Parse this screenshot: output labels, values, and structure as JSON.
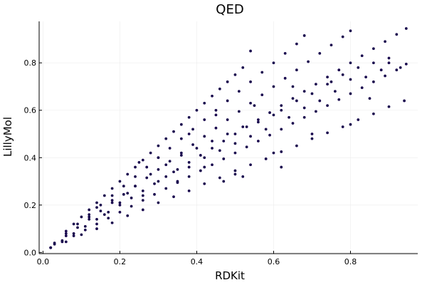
{
  "chart_data": {
    "type": "scatter",
    "title": "QED",
    "xlabel": "RDKit",
    "ylabel": "LillyMol",
    "xlim": [
      -0.01,
      0.975
    ],
    "ylim": [
      -0.005,
      0.975
    ],
    "grid": true,
    "legend": "none",
    "marker_color": "#1a0a4e",
    "xticks": [
      0.0,
      0.2,
      0.4,
      0.6,
      0.8
    ],
    "yticks": [
      0.0,
      0.2,
      0.4,
      0.6,
      0.8
    ],
    "xtick_labels": [
      "0.0",
      "0.2",
      "0.4",
      "0.6",
      "0.8"
    ],
    "ytick_labels": [
      "0.0",
      "0.2",
      "0.4",
      "0.6",
      "0.8"
    ],
    "series": [
      {
        "x": [
          0.02,
          0.05,
          0.08,
          0.11,
          0.14,
          0.17,
          0.2,
          0.23,
          0.26,
          0.29,
          0.32,
          0.35,
          0.38,
          0.41,
          0.44,
          0.47,
          0.5,
          0.53,
          0.56,
          0.59,
          0.62,
          0.65,
          0.68,
          0.71,
          0.74,
          0.77,
          0.8,
          0.83,
          0.86,
          0.89,
          0.92,
          0.945
        ],
        "y": [
          0.02,
          0.05,
          0.08,
          0.11,
          0.14,
          0.17,
          0.2,
          0.23,
          0.26,
          0.29,
          0.32,
          0.35,
          0.38,
          0.41,
          0.44,
          0.47,
          0.5,
          0.53,
          0.56,
          0.59,
          0.62,
          0.65,
          0.68,
          0.71,
          0.74,
          0.77,
          0.8,
          0.83,
          0.86,
          0.89,
          0.92,
          0.945
        ]
      },
      {
        "x": [
          0.03,
          0.06,
          0.09,
          0.12,
          0.15,
          0.18,
          0.21,
          0.24,
          0.27,
          0.3,
          0.33,
          0.36,
          0.39,
          0.42,
          0.45,
          0.48,
          0.51,
          0.54,
          0.57,
          0.6,
          0.63,
          0.66,
          0.69,
          0.72,
          0.75,
          0.78,
          0.8
        ],
        "y": [
          0.035,
          0.07,
          0.105,
          0.14,
          0.175,
          0.21,
          0.245,
          0.28,
          0.315,
          0.35,
          0.385,
          0.42,
          0.455,
          0.49,
          0.525,
          0.56,
          0.595,
          0.63,
          0.665,
          0.7,
          0.735,
          0.77,
          0.805,
          0.84,
          0.875,
          0.91,
          0.935
        ]
      },
      {
        "x": [
          0.03,
          0.06,
          0.09,
          0.12,
          0.15,
          0.18,
          0.21,
          0.24,
          0.27,
          0.3,
          0.33,
          0.36,
          0.39,
          0.42,
          0.45,
          0.48,
          0.51,
          0.54,
          0.57,
          0.6,
          0.63,
          0.66,
          0.68
        ],
        "y": [
          0.04,
          0.08,
          0.12,
          0.16,
          0.2,
          0.24,
          0.28,
          0.32,
          0.36,
          0.4,
          0.44,
          0.48,
          0.52,
          0.56,
          0.6,
          0.64,
          0.68,
          0.72,
          0.76,
          0.8,
          0.84,
          0.88,
          0.915
        ]
      },
      {
        "x": [
          0.06,
          0.08,
          0.1,
          0.12,
          0.14,
          0.16,
          0.18,
          0.2,
          0.22,
          0.24,
          0.26,
          0.28,
          0.3,
          0.32,
          0.34,
          0.36,
          0.38,
          0.4,
          0.42,
          0.44,
          0.46,
          0.48,
          0.5,
          0.52,
          0.54
        ],
        "y": [
          0.09,
          0.12,
          0.15,
          0.18,
          0.21,
          0.24,
          0.27,
          0.3,
          0.33,
          0.36,
          0.39,
          0.42,
          0.45,
          0.48,
          0.51,
          0.54,
          0.57,
          0.6,
          0.63,
          0.66,
          0.69,
          0.72,
          0.75,
          0.78,
          0.85
        ]
      },
      {
        "x": [
          0.02,
          0.05,
          0.08,
          0.11,
          0.14,
          0.17,
          0.2,
          0.23,
          0.26,
          0.29,
          0.32,
          0.35,
          0.38,
          0.41,
          0.44,
          0.47,
          0.5,
          0.53,
          0.56,
          0.59,
          0.62,
          0.65,
          0.68,
          0.71,
          0.74,
          0.77,
          0.8,
          0.83,
          0.86,
          0.89,
          0.92,
          0.945
        ],
        "y": [
          0.02,
          0.045,
          0.07,
          0.095,
          0.12,
          0.145,
          0.17,
          0.195,
          0.22,
          0.245,
          0.27,
          0.295,
          0.32,
          0.345,
          0.37,
          0.395,
          0.42,
          0.445,
          0.47,
          0.495,
          0.52,
          0.545,
          0.57,
          0.595,
          0.62,
          0.645,
          0.67,
          0.695,
          0.72,
          0.745,
          0.77,
          0.795
        ]
      },
      {
        "x": [
          0.02,
          0.06,
          0.1,
          0.14,
          0.18,
          0.22,
          0.26,
          0.3,
          0.34,
          0.38,
          0.42,
          0.46,
          0.5,
          0.54,
          0.58,
          0.62,
          0.66,
          0.7,
          0.74,
          0.78,
          0.82,
          0.86,
          0.9,
          0.94
        ],
        "y": [
          0.02,
          0.045,
          0.075,
          0.1,
          0.125,
          0.155,
          0.18,
          0.21,
          0.235,
          0.26,
          0.29,
          0.315,
          0.345,
          0.37,
          0.395,
          0.425,
          0.45,
          0.48,
          0.505,
          0.53,
          0.56,
          0.585,
          0.615,
          0.64
        ]
      },
      {
        "x": [
          0.12,
          0.14,
          0.16,
          0.18,
          0.2,
          0.22,
          0.24,
          0.26,
          0.28,
          0.3,
          0.32,
          0.34,
          0.36,
          0.38,
          0.4,
          0.42,
          0.44,
          0.46,
          0.48,
          0.5,
          0.52,
          0.54,
          0.56,
          0.58,
          0.6,
          0.62,
          0.64,
          0.66,
          0.68,
          0.7,
          0.72,
          0.74,
          0.76,
          0.78,
          0.8,
          0.82,
          0.84,
          0.86,
          0.88,
          0.9
        ],
        "y": [
          0.15,
          0.19,
          0.16,
          0.22,
          0.21,
          0.25,
          0.28,
          0.24,
          0.33,
          0.3,
          0.37,
          0.34,
          0.41,
          0.36,
          0.44,
          0.4,
          0.47,
          0.43,
          0.5,
          0.46,
          0.53,
          0.49,
          0.55,
          0.52,
          0.58,
          0.6,
          0.57,
          0.64,
          0.61,
          0.67,
          0.64,
          0.71,
          0.68,
          0.75,
          0.73,
          0.78,
          0.74,
          0.8,
          0.77,
          0.82
        ]
      },
      {
        "x": [
          0.25,
          0.3,
          0.35,
          0.38,
          0.42,
          0.45,
          0.5,
          0.55,
          0.6,
          0.65,
          0.7,
          0.75,
          0.8,
          0.85,
          0.9,
          0.93,
          0.47,
          0.52,
          0.62
        ],
        "y": [
          0.38,
          0.4,
          0.3,
          0.5,
          0.36,
          0.58,
          0.33,
          0.62,
          0.42,
          0.7,
          0.5,
          0.72,
          0.54,
          0.65,
          0.8,
          0.78,
          0.3,
          0.32,
          0.36
        ]
      }
    ]
  }
}
